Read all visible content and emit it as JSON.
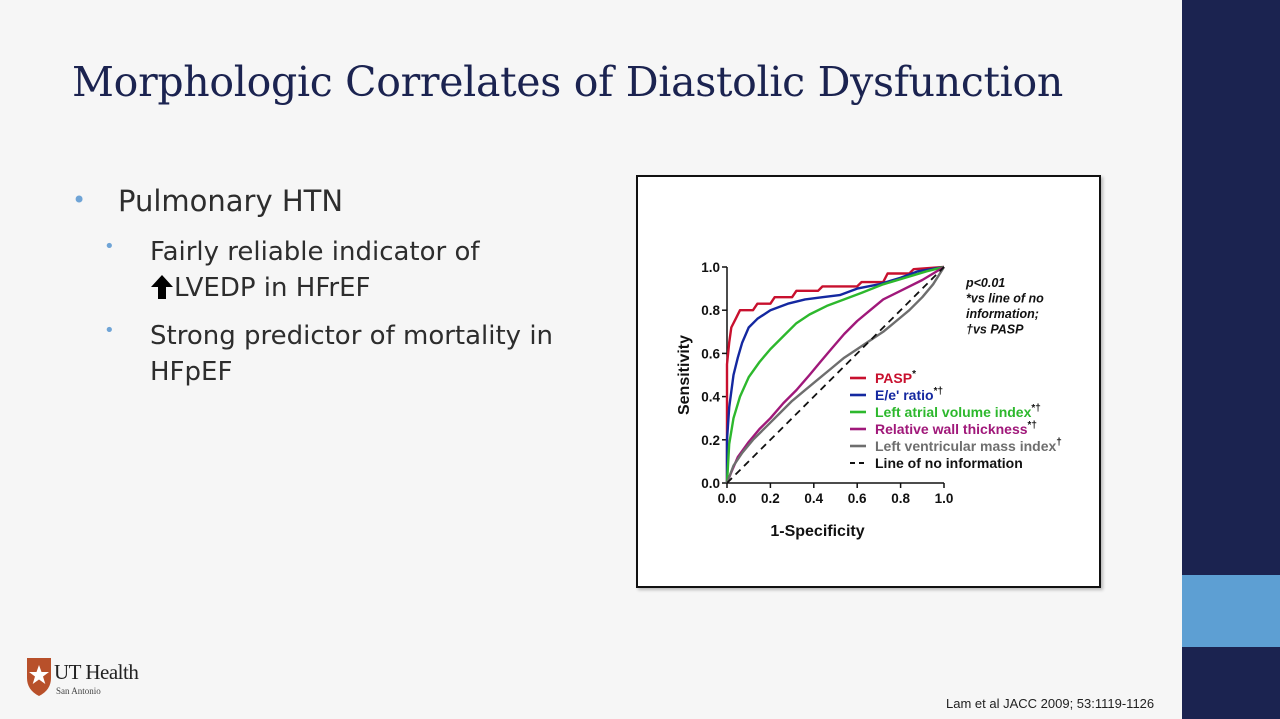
{
  "slide": {
    "title": "Morphologic Correlates of Diastolic Dysfunction",
    "bullets": {
      "main": "Pulmonary HTN",
      "sub1_line1": "Fairly reliable indicator of",
      "sub1_line2": "LVEDP in HFrEF",
      "sub2": "Strong predictor of mortality in HFpEF"
    },
    "citation": "Lam et al JACC 2009; 53:1119-1126",
    "logo": {
      "name": "UT Health",
      "subtitle": "San Antonio"
    }
  },
  "colors": {
    "title": "#1b2350",
    "sidebar": "#1b2350",
    "accent": "#5d9fd3",
    "bullet_dot": "#6fa4d6"
  },
  "icons": {
    "up_arrow": "up-arrow-icon",
    "logo": "shield-star-icon"
  },
  "chart_data": {
    "type": "line",
    "xlabel": "1-Specificity",
    "ylabel": "Sensitivity",
    "xlim": [
      0,
      1
    ],
    "ylim": [
      0,
      1
    ],
    "x_ticks": [
      "0.0",
      "0.2",
      "0.4",
      "0.6",
      "0.8",
      "1.0"
    ],
    "y_ticks": [
      "0.0",
      "0.2",
      "0.4",
      "0.6",
      "0.8",
      "1.0"
    ],
    "legend_position": "bottom-right",
    "annotation": [
      "p<0.01",
      "*vs line of no",
      "information;",
      "†vs PASP"
    ],
    "series": [
      {
        "name": "PASP",
        "sup": "*",
        "color": "#c8102e",
        "dash": false,
        "points": [
          [
            0,
            0
          ],
          [
            0,
            0.55
          ],
          [
            0.01,
            0.65
          ],
          [
            0.02,
            0.72
          ],
          [
            0.04,
            0.76
          ],
          [
            0.06,
            0.8
          ],
          [
            0.12,
            0.8
          ],
          [
            0.14,
            0.83
          ],
          [
            0.2,
            0.83
          ],
          [
            0.22,
            0.86
          ],
          [
            0.3,
            0.86
          ],
          [
            0.32,
            0.89
          ],
          [
            0.42,
            0.89
          ],
          [
            0.44,
            0.91
          ],
          [
            0.6,
            0.91
          ],
          [
            0.62,
            0.93
          ],
          [
            0.72,
            0.93
          ],
          [
            0.74,
            0.97
          ],
          [
            0.84,
            0.97
          ],
          [
            0.86,
            0.99
          ],
          [
            1,
            1
          ]
        ]
      },
      {
        "name": "E/e' ratio",
        "sup": "*†",
        "color": "#1428a0",
        "dash": false,
        "points": [
          [
            0,
            0
          ],
          [
            0,
            0.2
          ],
          [
            0.01,
            0.35
          ],
          [
            0.03,
            0.5
          ],
          [
            0.05,
            0.58
          ],
          [
            0.07,
            0.65
          ],
          [
            0.1,
            0.72
          ],
          [
            0.14,
            0.76
          ],
          [
            0.2,
            0.8
          ],
          [
            0.28,
            0.83
          ],
          [
            0.36,
            0.85
          ],
          [
            0.44,
            0.86
          ],
          [
            0.52,
            0.87
          ],
          [
            0.6,
            0.9
          ],
          [
            0.7,
            0.92
          ],
          [
            0.8,
            0.95
          ],
          [
            0.88,
            0.98
          ],
          [
            1,
            1
          ]
        ]
      },
      {
        "name": "Left atrial volume index",
        "sup": "*†",
        "color": "#2db82d",
        "dash": false,
        "points": [
          [
            0,
            0
          ],
          [
            0.01,
            0.18
          ],
          [
            0.03,
            0.3
          ],
          [
            0.06,
            0.4
          ],
          [
            0.1,
            0.49
          ],
          [
            0.15,
            0.56
          ],
          [
            0.2,
            0.62
          ],
          [
            0.26,
            0.68
          ],
          [
            0.32,
            0.74
          ],
          [
            0.38,
            0.78
          ],
          [
            0.46,
            0.82
          ],
          [
            0.54,
            0.85
          ],
          [
            0.62,
            0.88
          ],
          [
            0.72,
            0.92
          ],
          [
            0.82,
            0.95
          ],
          [
            0.92,
            0.98
          ],
          [
            1,
            1
          ]
        ]
      },
      {
        "name": "Relative wall thickness",
        "sup": "*†",
        "color": "#a0187a",
        "dash": false,
        "points": [
          [
            0,
            0
          ],
          [
            0.02,
            0.05
          ],
          [
            0.05,
            0.12
          ],
          [
            0.1,
            0.19
          ],
          [
            0.15,
            0.25
          ],
          [
            0.2,
            0.3
          ],
          [
            0.26,
            0.37
          ],
          [
            0.32,
            0.43
          ],
          [
            0.38,
            0.5
          ],
          [
            0.43,
            0.56
          ],
          [
            0.48,
            0.62
          ],
          [
            0.54,
            0.69
          ],
          [
            0.6,
            0.75
          ],
          [
            0.66,
            0.8
          ],
          [
            0.72,
            0.85
          ],
          [
            0.8,
            0.89
          ],
          [
            0.9,
            0.94
          ],
          [
            1,
            1
          ]
        ]
      },
      {
        "name": "Left ventricular mass index",
        "sup": "†",
        "color": "#6e6e6e",
        "dash": false,
        "points": [
          [
            0,
            0
          ],
          [
            0.03,
            0.08
          ],
          [
            0.07,
            0.14
          ],
          [
            0.12,
            0.2
          ],
          [
            0.18,
            0.26
          ],
          [
            0.24,
            0.32
          ],
          [
            0.3,
            0.38
          ],
          [
            0.36,
            0.43
          ],
          [
            0.42,
            0.48
          ],
          [
            0.48,
            0.53
          ],
          [
            0.54,
            0.58
          ],
          [
            0.6,
            0.62
          ],
          [
            0.66,
            0.66
          ],
          [
            0.72,
            0.7
          ],
          [
            0.78,
            0.75
          ],
          [
            0.84,
            0.8
          ],
          [
            0.9,
            0.86
          ],
          [
            0.95,
            0.92
          ],
          [
            1,
            1
          ]
        ]
      },
      {
        "name": "Line of no information",
        "sup": "",
        "color": "#111111",
        "dash": true,
        "points": [
          [
            0,
            0
          ],
          [
            1,
            1
          ]
        ]
      }
    ]
  }
}
